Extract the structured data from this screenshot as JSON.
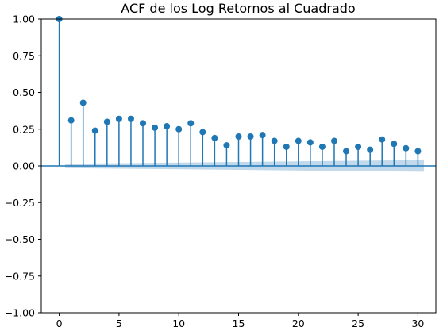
{
  "chart_data": {
    "type": "stem",
    "title": "ACF de los Log Retornos al Cuadrado",
    "xlabel": "",
    "ylabel": "",
    "xlim": [
      -1.5,
      31.5
    ],
    "ylim": [
      -1.0,
      1.0
    ],
    "xticks": [
      0,
      5,
      10,
      15,
      20,
      25,
      30
    ],
    "yticks": [
      -1.0,
      -0.75,
      -0.5,
      -0.25,
      0.0,
      0.25,
      0.5,
      0.75,
      1.0
    ],
    "xtick_labels": [
      "0",
      "5",
      "10",
      "15",
      "20",
      "25",
      "30"
    ],
    "ytick_labels": [
      "−1.00",
      "−0.75",
      "−0.50",
      "−0.25",
      "0.00",
      "0.25",
      "0.50",
      "0.75",
      "1.00"
    ],
    "grid": false,
    "colors": {
      "stem": "#1f77b4",
      "confidence_band": "#1f77b4"
    },
    "lags": [
      0,
      1,
      2,
      3,
      4,
      5,
      6,
      7,
      8,
      9,
      10,
      11,
      12,
      13,
      14,
      15,
      16,
      17,
      18,
      19,
      20,
      21,
      22,
      23,
      24,
      25,
      26,
      27,
      28,
      29,
      30
    ],
    "acf": [
      1.0,
      0.31,
      0.43,
      0.24,
      0.3,
      0.32,
      0.32,
      0.29,
      0.26,
      0.27,
      0.25,
      0.29,
      0.23,
      0.19,
      0.14,
      0.2,
      0.2,
      0.21,
      0.17,
      0.13,
      0.17,
      0.16,
      0.13,
      0.17,
      0.1,
      0.13,
      0.11,
      0.18,
      0.15,
      0.12,
      0.1
    ],
    "confidence_band": {
      "x": [
        0.5,
        30.5
      ],
      "lower_start": -0.015,
      "lower_end": -0.04,
      "upper_start": 0.015,
      "upper_end": 0.04
    }
  }
}
